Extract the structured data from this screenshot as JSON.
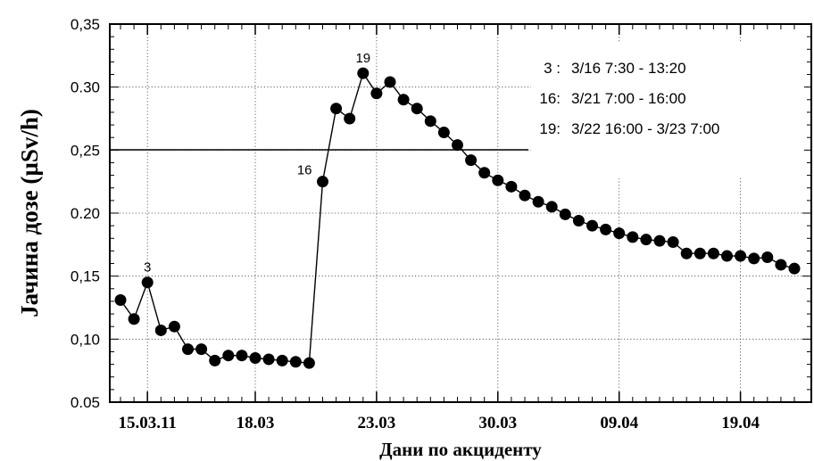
{
  "chart_data": {
    "type": "line",
    "xlabel": "Дани по акциденту",
    "ylabel": "Јачина дозе (µSv/h)",
    "ylim": [
      0.05,
      0.35
    ],
    "yticks": [
      "0.05",
      "0,10",
      "0,15",
      "0.20",
      "0,25",
      "0.30",
      "0,35"
    ],
    "yticks_values": [
      0.05,
      0.1,
      0.15,
      0.2,
      0.25,
      0.3,
      0.35
    ],
    "xticks": [
      {
        "label": "15.03.11",
        "index": 2
      },
      {
        "label": "18.03",
        "index": 10
      },
      {
        "label": "23.03",
        "index": 19
      },
      {
        "label": "30.03",
        "index": 28
      },
      {
        "label": "09.04",
        "index": 37
      },
      {
        "label": "19.04",
        "index": 46
      }
    ],
    "grid": true,
    "marker": "circle",
    "series": [
      {
        "values": [
          0.131,
          0.116,
          0.145,
          0.107,
          0.11,
          0.092,
          0.092,
          0.083,
          0.087,
          0.087,
          0.085,
          0.084,
          0.083,
          0.082,
          0.081,
          0.225,
          0.283,
          0.275,
          0.311,
          0.295,
          0.304,
          0.29,
          0.283,
          0.273,
          0.264,
          0.254,
          0.242,
          0.232,
          0.226,
          0.221,
          0.214,
          0.209,
          0.205,
          0.199,
          0.194,
          0.19,
          0.187,
          0.184,
          0.181,
          0.179,
          0.178,
          0.177,
          0.168,
          0.168,
          0.168,
          0.166,
          0.166,
          0.164,
          0.165,
          0.159,
          0.156
        ]
      }
    ],
    "annotations": [
      {
        "text": "3",
        "point_index": 2
      },
      {
        "text": "16",
        "point_index": 15
      },
      {
        "text": "19",
        "point_index": 18
      }
    ],
    "legend": {
      "placement": "top-right",
      "entries": [
        {
          "key": "3 :",
          "value": "3/16  7:30 - 13:20"
        },
        {
          "key": "16:",
          "value": "3/21 7:00 - 16:00"
        },
        {
          "key": "19:",
          "value": "3/22 16:00 - 3/23 7:00"
        }
      ]
    }
  }
}
